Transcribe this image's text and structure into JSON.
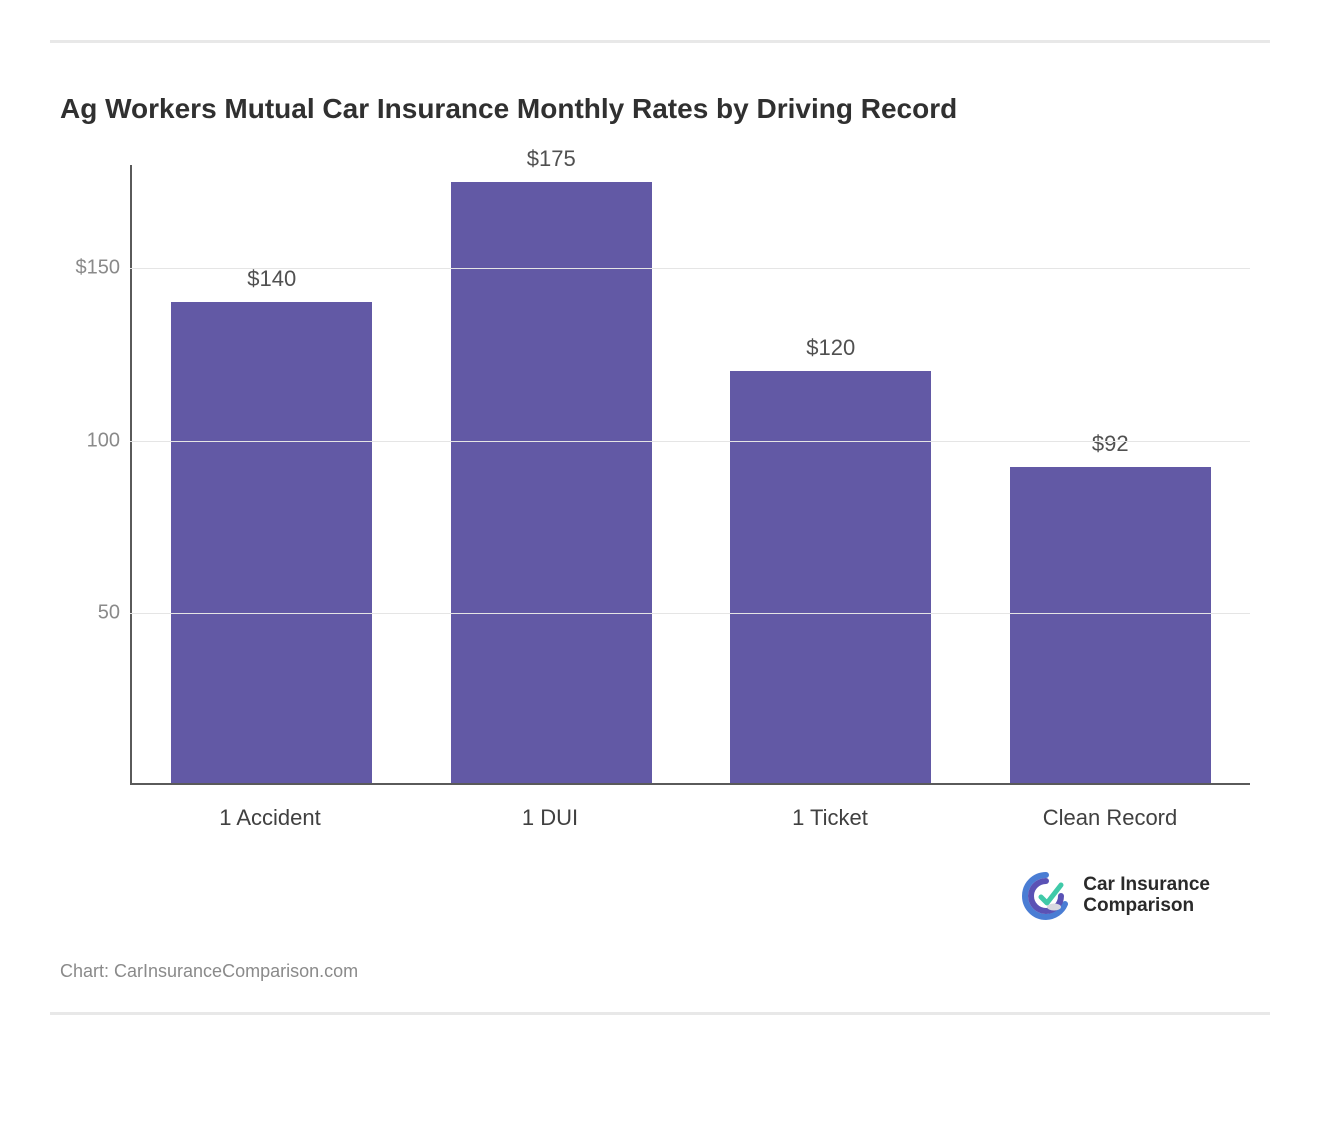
{
  "chart": {
    "type": "bar",
    "title": "Ag Workers Mutual Car Insurance Monthly Rates by Driving Record",
    "title_fontsize": 28,
    "title_color": "#303030",
    "categories": [
      "1 Accident",
      "1 DUI",
      "1 Ticket",
      "Clean Record"
    ],
    "values": [
      140,
      175,
      120,
      92
    ],
    "value_labels": [
      "$140",
      "$175",
      "$120",
      "$92"
    ],
    "bar_color": "#6259a5",
    "bar_width_pct": 72,
    "ylim": [
      0,
      180
    ],
    "yticks": [
      50,
      100,
      150
    ],
    "ytick_labels": [
      "50",
      "100",
      "$150"
    ],
    "gridlines": [
      50,
      100,
      150
    ],
    "grid_color": "#e5e5e5",
    "axis_color": "#5a5a5a",
    "background_color": "#ffffff",
    "x_label_fontsize": 22,
    "x_label_color": "#404040",
    "y_label_fontsize": 20,
    "y_label_color": "#8a8a8a",
    "value_label_fontsize": 22,
    "value_label_color": "#505050"
  },
  "logo": {
    "line1": "Car Insurance",
    "line2": "Comparison",
    "icon_outer_color": "#4a7dd4",
    "icon_inner_color": "#5a52b5",
    "icon_accent_color": "#3fc9a8"
  },
  "source": "Chart: CarInsuranceComparison.com",
  "divider_color": "#e8e8e8"
}
